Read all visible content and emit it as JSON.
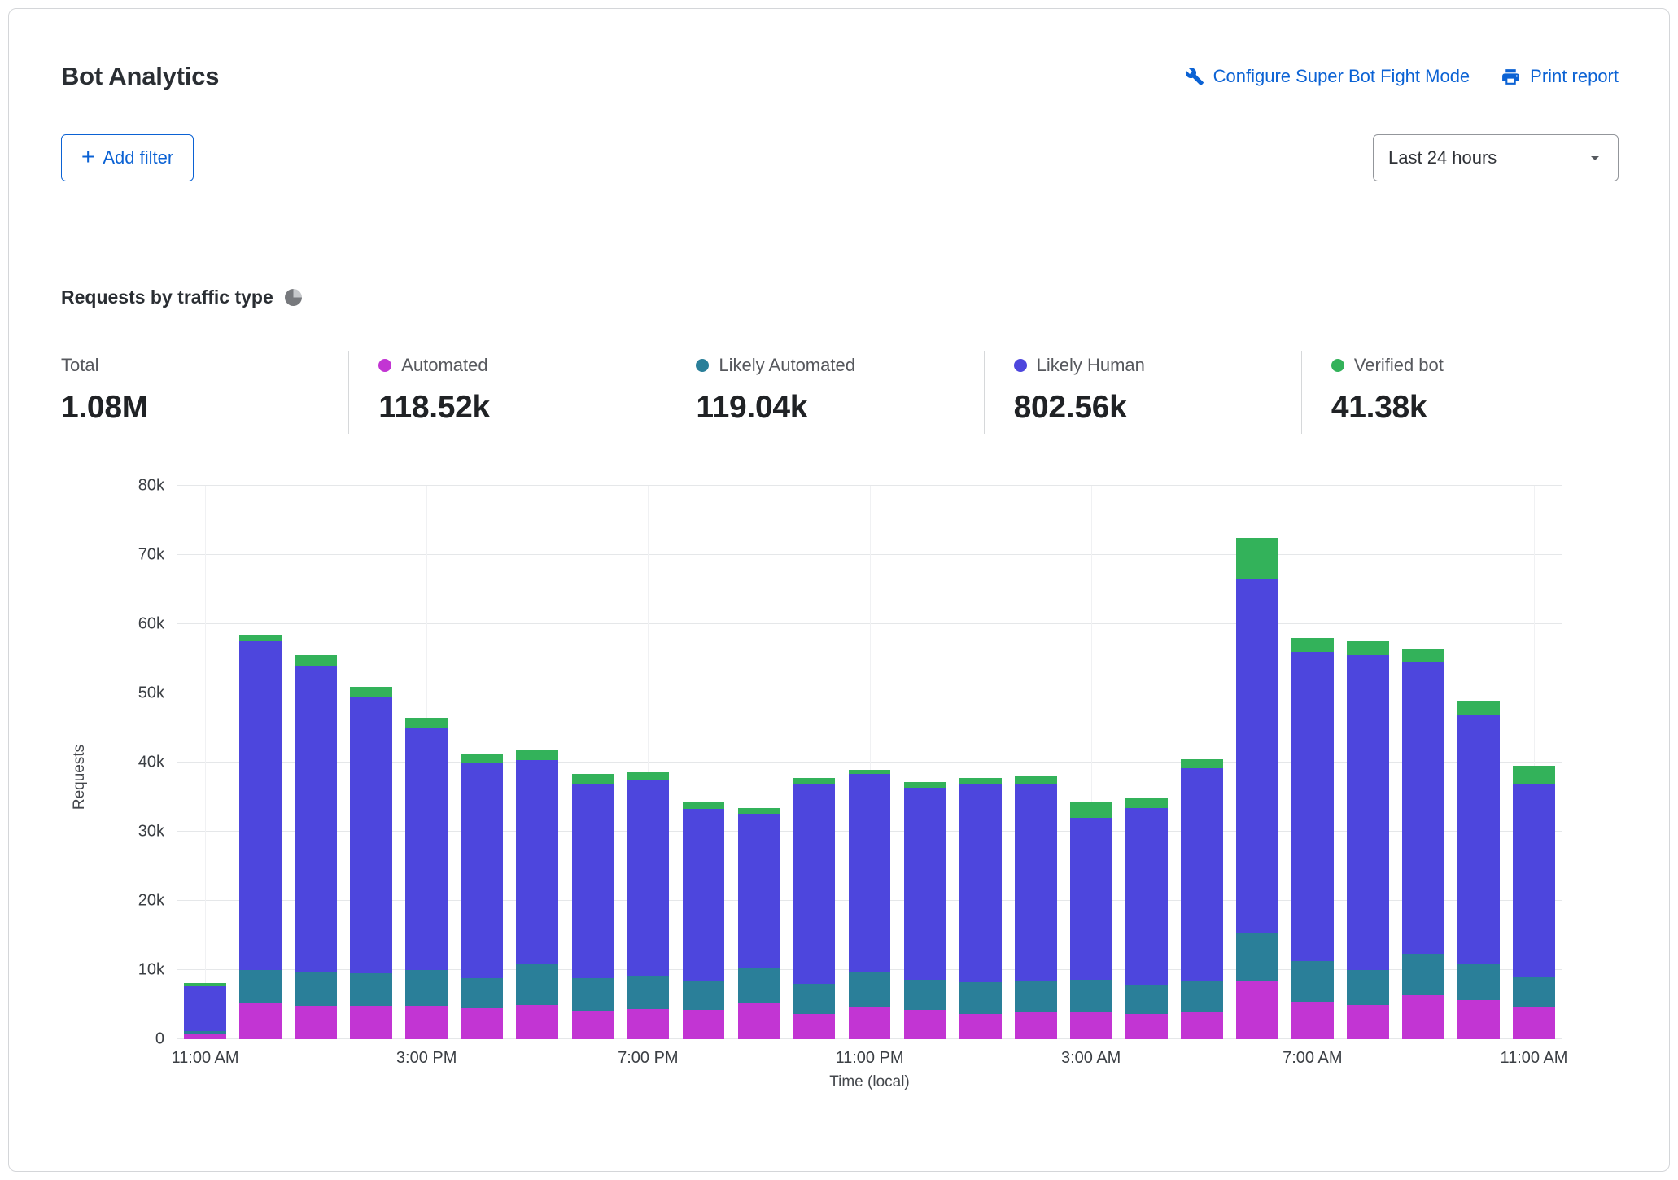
{
  "header": {
    "title": "Bot Analytics",
    "configure_link": "Configure Super Bot Fight Mode",
    "print_link": "Print report",
    "add_filter_label": "Add filter",
    "time_range": "Last 24 hours"
  },
  "section": {
    "title": "Requests by traffic type"
  },
  "stats": [
    {
      "label": "Total",
      "value": "1.08M",
      "color": null
    },
    {
      "label": "Automated",
      "value": "118.52k",
      "color": "#c235d3"
    },
    {
      "label": "Likely Automated",
      "value": "119.04k",
      "color": "#2a7f99"
    },
    {
      "label": "Likely Human",
      "value": "802.56k",
      "color": "#4d46dd"
    },
    {
      "label": "Verified bot",
      "value": "41.38k",
      "color": "#33b25a"
    }
  ],
  "chart_data": {
    "type": "bar",
    "stacked": true,
    "title": "Requests by traffic type",
    "xlabel": "Time (local)",
    "ylabel": "Requests",
    "ylim": [
      0,
      80000
    ],
    "grid": true,
    "ytick_labels": [
      "0",
      "10k",
      "20k",
      "30k",
      "40k",
      "50k",
      "60k",
      "70k",
      "80k"
    ],
    "xticks": [
      {
        "index": 0,
        "label": "11:00 AM"
      },
      {
        "index": 4,
        "label": "3:00 PM"
      },
      {
        "index": 8,
        "label": "7:00 PM"
      },
      {
        "index": 12,
        "label": "11:00 PM"
      },
      {
        "index": 16,
        "label": "3:00 AM"
      },
      {
        "index": 20,
        "label": "7:00 AM"
      },
      {
        "index": 24,
        "label": "11:00 AM"
      }
    ],
    "series": [
      {
        "name": "Automated",
        "color": "#c235d3",
        "values": [
          700,
          5300,
          4800,
          4800,
          4800,
          4500,
          4900,
          4100,
          4400,
          4200,
          5200,
          3600,
          4600,
          4200,
          3600,
          3900,
          4000,
          3700,
          3900,
          8400,
          5400,
          5000,
          6400,
          5600,
          4600
        ]
      },
      {
        "name": "Likely Automated",
        "color": "#2a7f99",
        "values": [
          500,
          4700,
          5000,
          4700,
          5200,
          4300,
          6000,
          4700,
          4800,
          4300,
          5200,
          4400,
          5000,
          4400,
          4600,
          4600,
          4600,
          4200,
          4400,
          7000,
          5900,
          5000,
          5900,
          5200,
          4300
        ]
      },
      {
        "name": "Likely Human",
        "color": "#4d46dd",
        "values": [
          6600,
          47500,
          44200,
          40000,
          35000,
          31200,
          29400,
          28200,
          28200,
          24800,
          22200,
          28800,
          28700,
          27700,
          28800,
          28300,
          23400,
          25500,
          30900,
          51200,
          44700,
          45500,
          42200,
          36200,
          28100
        ]
      },
      {
        "name": "Verified bot",
        "color": "#33b25a",
        "values": [
          300,
          1000,
          1500,
          1500,
          1500,
          1300,
          1500,
          1300,
          1200,
          1000,
          800,
          1000,
          600,
          900,
          800,
          1200,
          2200,
          1400,
          1300,
          5900,
          2000,
          2000,
          2000,
          2000,
          2500
        ]
      }
    ]
  }
}
